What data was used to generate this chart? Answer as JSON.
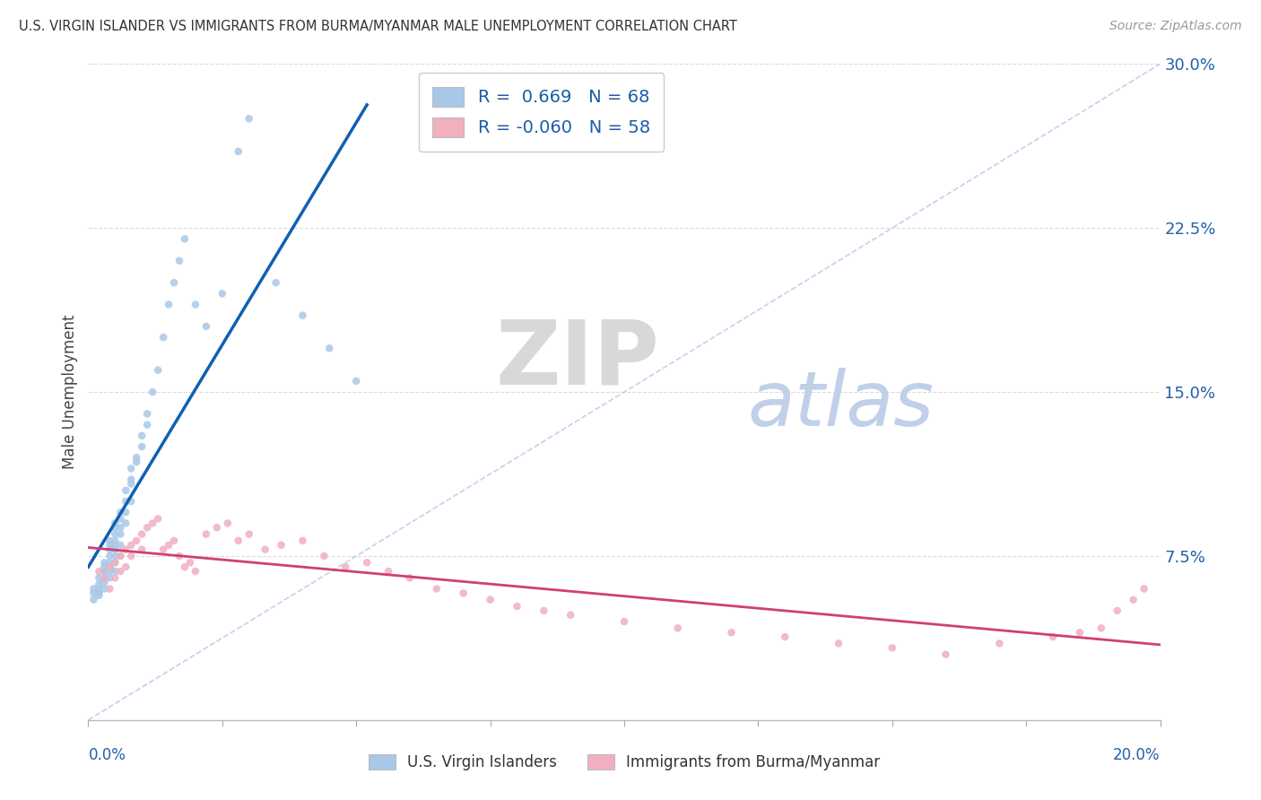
{
  "title": "U.S. VIRGIN ISLANDER VS IMMIGRANTS FROM BURMA/MYANMAR MALE UNEMPLOYMENT CORRELATION CHART",
  "source": "Source: ZipAtlas.com",
  "ylabel": "Male Unemployment",
  "xlim": [
    0.0,
    0.2
  ],
  "ylim": [
    0.0,
    0.3
  ],
  "blue_R": 0.669,
  "blue_N": 68,
  "pink_R": -0.06,
  "pink_N": 58,
  "blue_color": "#a8c8e8",
  "pink_color": "#f0b0c0",
  "blue_line_color": "#1060b0",
  "pink_line_color": "#d04070",
  "diag_color": "#b0c8e8",
  "legend_blue_label": "U.S. Virgin Islanders",
  "legend_pink_label": "Immigrants from Burma/Myanmar",
  "watermark_ZIP": "ZIP",
  "watermark_atlas": "atlas",
  "watermark_ZIP_color": "#d8d8d8",
  "watermark_atlas_color": "#c0d0e8",
  "ytick_vals": [
    0.075,
    0.15,
    0.225,
    0.3
  ],
  "ytick_labels": [
    "7.5%",
    "15.0%",
    "22.5%",
    "30.0%"
  ],
  "blue_x": [
    0.001,
    0.001,
    0.001,
    0.002,
    0.002,
    0.002,
    0.002,
    0.002,
    0.003,
    0.003,
    0.003,
    0.003,
    0.003,
    0.003,
    0.003,
    0.004,
    0.004,
    0.004,
    0.004,
    0.004,
    0.004,
    0.004,
    0.004,
    0.005,
    0.005,
    0.005,
    0.005,
    0.005,
    0.005,
    0.005,
    0.005,
    0.005,
    0.006,
    0.006,
    0.006,
    0.006,
    0.006,
    0.006,
    0.007,
    0.007,
    0.007,
    0.007,
    0.008,
    0.008,
    0.008,
    0.008,
    0.009,
    0.009,
    0.01,
    0.01,
    0.011,
    0.011,
    0.012,
    0.013,
    0.014,
    0.015,
    0.016,
    0.017,
    0.018,
    0.02,
    0.022,
    0.025,
    0.028,
    0.03,
    0.035,
    0.04,
    0.045,
    0.05
  ],
  "blue_y": [
    0.06,
    0.055,
    0.058,
    0.062,
    0.065,
    0.058,
    0.06,
    0.057,
    0.068,
    0.065,
    0.07,
    0.072,
    0.068,
    0.063,
    0.06,
    0.075,
    0.078,
    0.072,
    0.068,
    0.065,
    0.08,
    0.082,
    0.07,
    0.085,
    0.088,
    0.08,
    0.078,
    0.075,
    0.082,
    0.09,
    0.068,
    0.072,
    0.092,
    0.095,
    0.085,
    0.088,
    0.08,
    0.075,
    0.1,
    0.105,
    0.095,
    0.09,
    0.11,
    0.115,
    0.108,
    0.1,
    0.12,
    0.118,
    0.13,
    0.125,
    0.14,
    0.135,
    0.15,
    0.16,
    0.175,
    0.19,
    0.2,
    0.21,
    0.22,
    0.19,
    0.18,
    0.195,
    0.26,
    0.275,
    0.2,
    0.185,
    0.17,
    0.155
  ],
  "pink_x": [
    0.002,
    0.003,
    0.004,
    0.004,
    0.005,
    0.005,
    0.006,
    0.006,
    0.007,
    0.007,
    0.008,
    0.008,
    0.009,
    0.01,
    0.01,
    0.011,
    0.012,
    0.013,
    0.014,
    0.015,
    0.016,
    0.017,
    0.018,
    0.019,
    0.02,
    0.022,
    0.024,
    0.026,
    0.028,
    0.03,
    0.033,
    0.036,
    0.04,
    0.044,
    0.048,
    0.052,
    0.056,
    0.06,
    0.065,
    0.07,
    0.075,
    0.08,
    0.085,
    0.09,
    0.1,
    0.11,
    0.12,
    0.13,
    0.14,
    0.15,
    0.16,
    0.17,
    0.18,
    0.185,
    0.189,
    0.192,
    0.195,
    0.197
  ],
  "pink_y": [
    0.068,
    0.065,
    0.07,
    0.06,
    0.072,
    0.065,
    0.075,
    0.068,
    0.078,
    0.07,
    0.08,
    0.075,
    0.082,
    0.085,
    0.078,
    0.088,
    0.09,
    0.092,
    0.078,
    0.08,
    0.082,
    0.075,
    0.07,
    0.072,
    0.068,
    0.085,
    0.088,
    0.09,
    0.082,
    0.085,
    0.078,
    0.08,
    0.082,
    0.075,
    0.07,
    0.072,
    0.068,
    0.065,
    0.06,
    0.058,
    0.055,
    0.052,
    0.05,
    0.048,
    0.045,
    0.042,
    0.04,
    0.038,
    0.035,
    0.033,
    0.03,
    0.035,
    0.038,
    0.04,
    0.042,
    0.05,
    0.055,
    0.06
  ]
}
